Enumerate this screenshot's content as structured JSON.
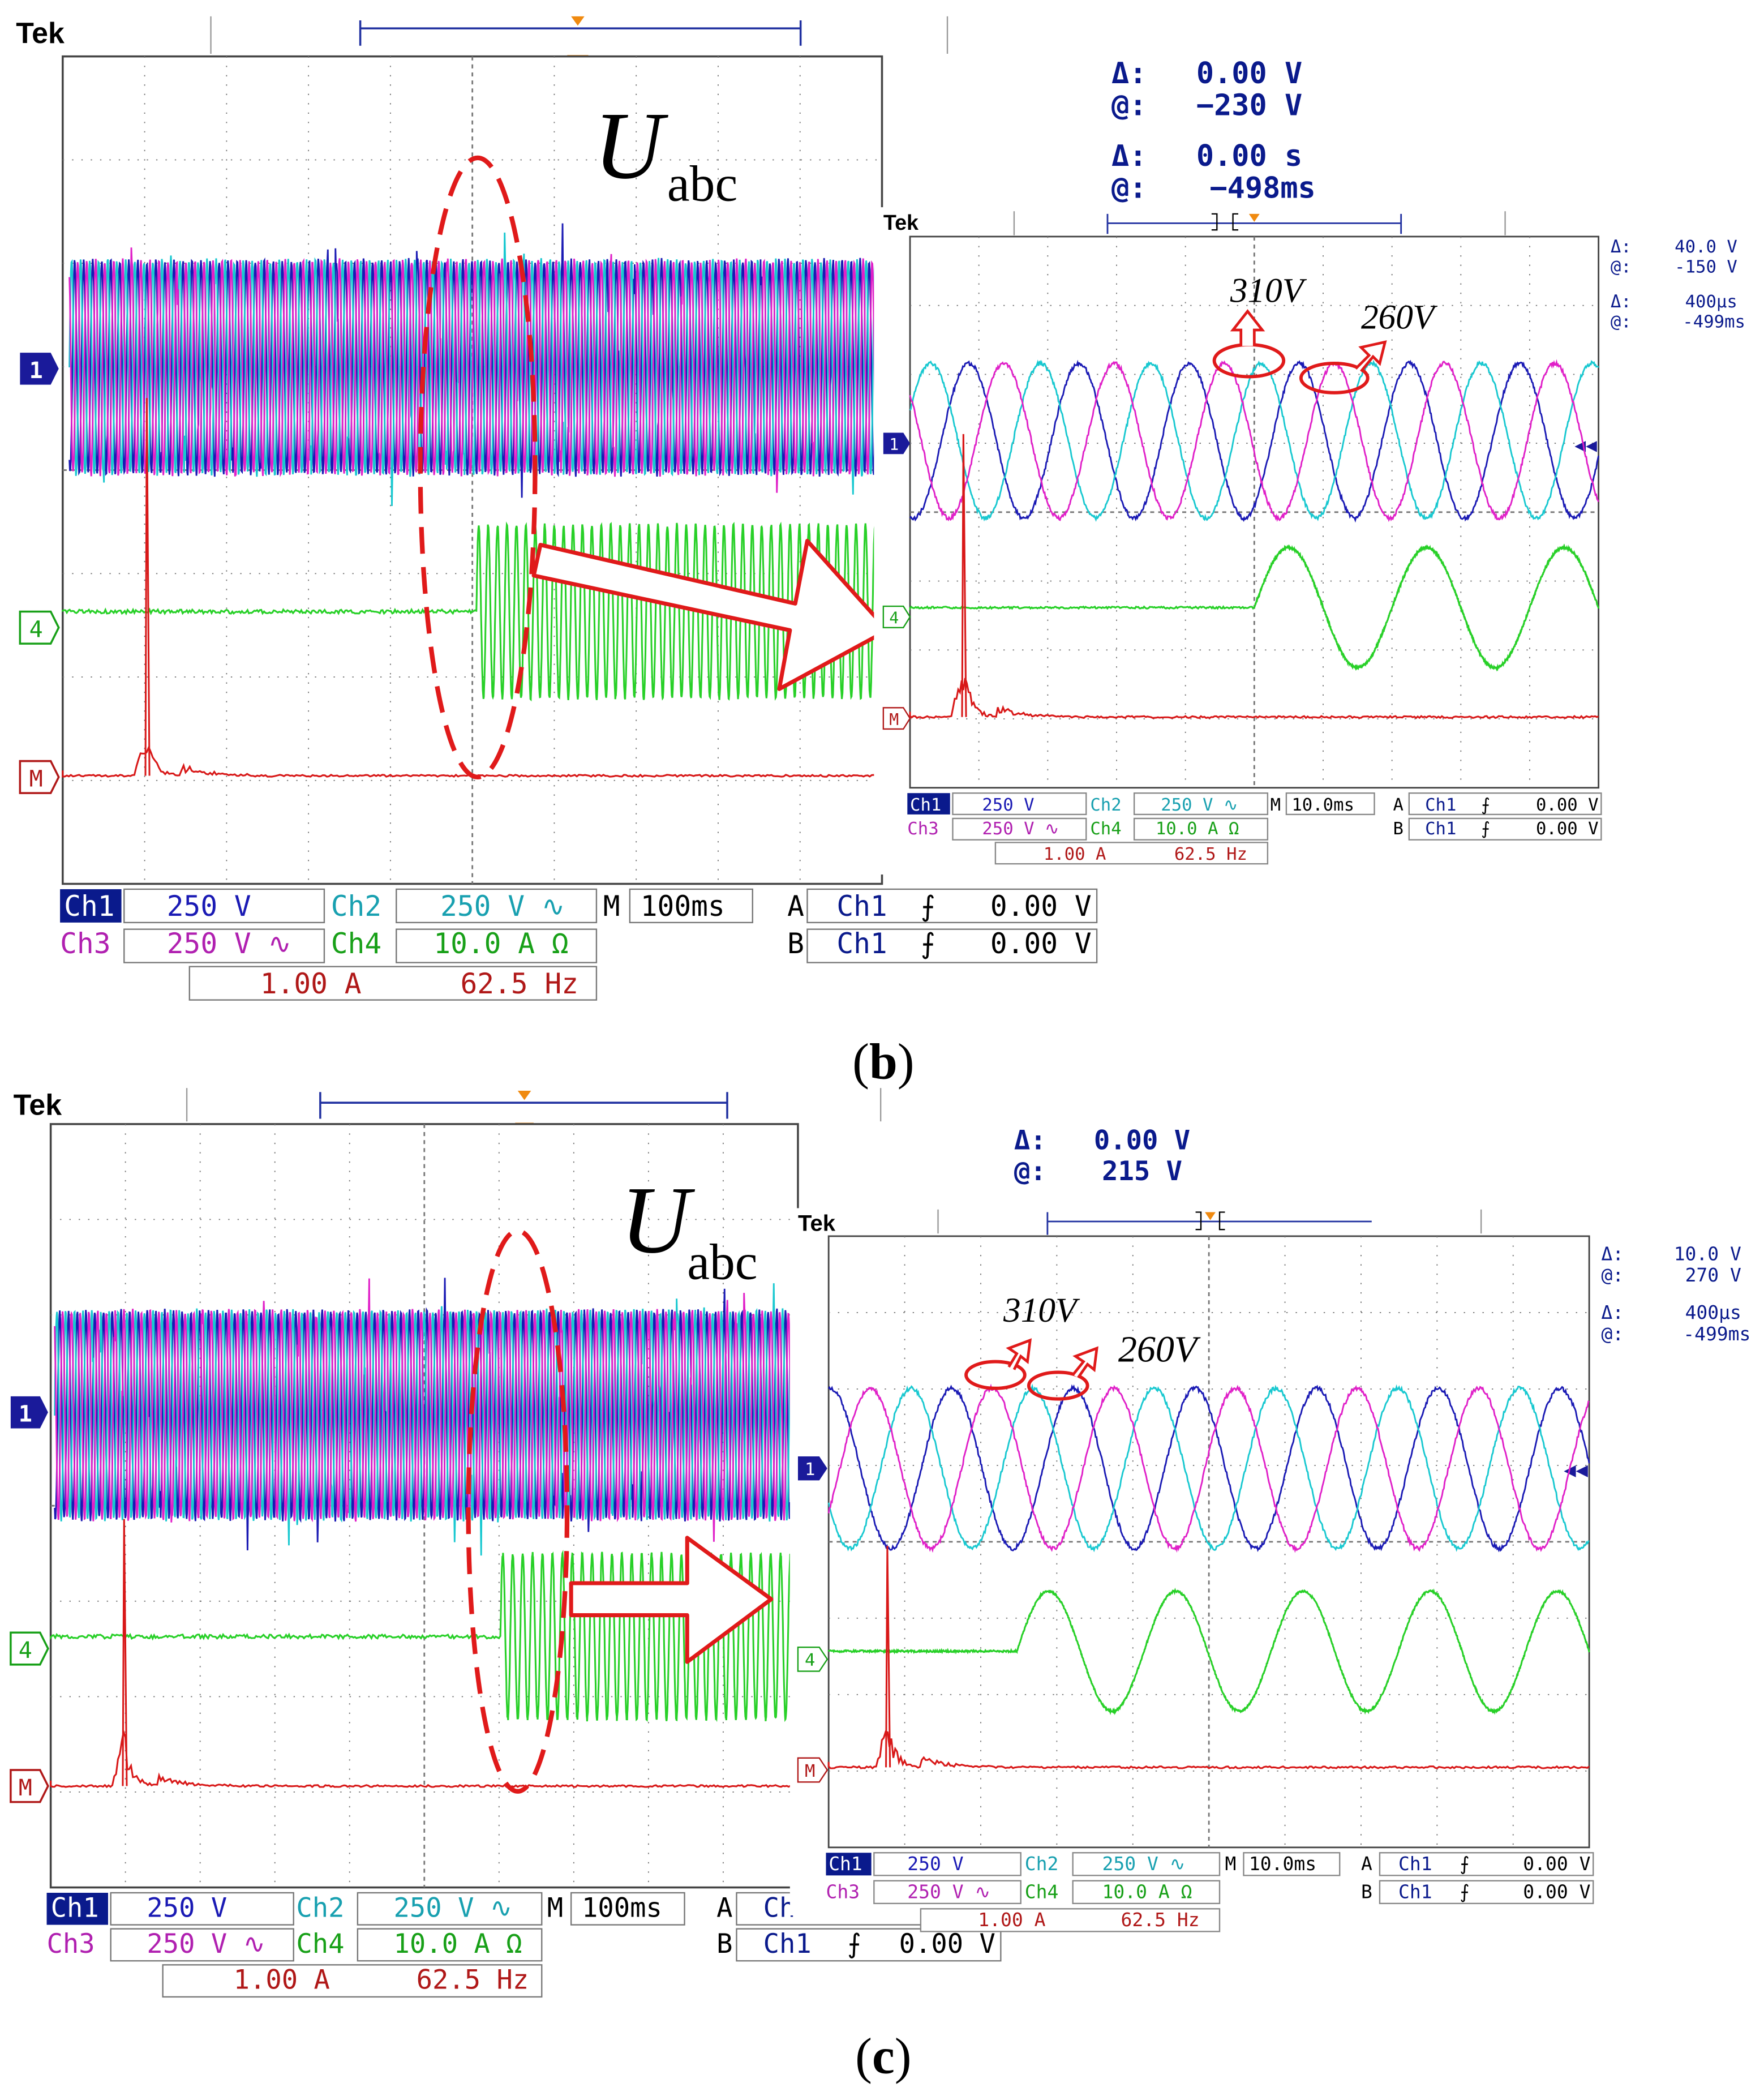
{
  "colors": {
    "ch1": "#1a1ab4",
    "ch2": "#18c8d0",
    "ch3": "#e020c8",
    "ch4": "#28d028",
    "math": "#d81818",
    "annotation": "#e01a1a",
    "readout": "#0a1a8c",
    "graticule": "#555555"
  },
  "icons": {
    "ellipse": "dashed-red-ellipse",
    "arrow": "big-red-outline-arrow",
    "markers": [
      "channel-1-marker",
      "channel-4-marker",
      "math-marker",
      "trigger-marker"
    ]
  },
  "panels": [
    {
      "caption": {
        "open": "(",
        "letter": "b",
        "close": ")"
      },
      "main": {
        "brand": "Tek",
        "title_main": "U",
        "title_sub": "abc",
        "cursor": {
          "dv_label": "Δ:",
          "dv": "0.00 V",
          "av_label": "@:",
          "av": "−230 V",
          "dt_label": "Δ:",
          "dt": "0.00 s",
          "at_label": "@:",
          "at": "−498ms"
        },
        "markers": {
          "ch1": "1",
          "ch4": "4",
          "math": "M"
        },
        "readout": {
          "ch1": "Ch1",
          "ch1_scale": "250 V",
          "ch2": "Ch2",
          "ch2_scale": "250 V ∿",
          "ch3": "Ch3",
          "ch3_scale": "250 V ∿",
          "ch4": "Ch4",
          "ch4_scale": "10.0 A Ω",
          "math_scale": "1.00 A",
          "math_freq": "62.5 Hz",
          "m_label": "M",
          "timebase": "100ms",
          "a_label": "A",
          "a_src": "Ch1",
          "a_slope": "⨍",
          "a_level": "0.00 V",
          "b_label": "B",
          "b_src": "Ch1",
          "b_slope": "⨍",
          "b_level": "0.00 V"
        }
      },
      "inset": {
        "brand": "Tek",
        "cursor": {
          "dv_label": "Δ:",
          "dv": "40.0 V",
          "av_label": "@:",
          "av": "-150 V",
          "dt_label": "Δ:",
          "dt": "400µs",
          "at_label": "@:",
          "at": "-499ms"
        },
        "ann1": "310V",
        "ann2": "260V",
        "markers": {
          "ch1": "1",
          "ch4": "4",
          "math": "M"
        },
        "readout": {
          "ch1": "Ch1",
          "ch1_scale": "250 V",
          "ch2": "Ch2",
          "ch2_scale": "250 V ∿",
          "ch3": "Ch3",
          "ch3_scale": "250 V ∿",
          "ch4": "Ch4",
          "ch4_scale": "10.0 A Ω",
          "math_scale": "1.00 A",
          "math_freq": "62.5 Hz",
          "m_label": "M",
          "timebase": "10.0ms",
          "a_label": "A",
          "a_src": "Ch1",
          "a_slope": "⨍",
          "a_level": "0.00 V",
          "b_label": "B",
          "b_src": "Ch1",
          "b_slope": "⨍",
          "b_level": "0.00 V"
        }
      }
    },
    {
      "caption": {
        "open": "(",
        "letter": "c",
        "close": ")"
      },
      "main": {
        "brand": "Tek",
        "title_main": "U",
        "title_sub": "abc",
        "cursor": {
          "dv_label": "Δ:",
          "dv": "0.00 V",
          "av_label": "@:",
          "av": "215 V",
          "dt_label": "",
          "dt": "",
          "at_label": "",
          "at": ""
        },
        "markers": {
          "ch1": "1",
          "ch4": "4",
          "math": "M"
        },
        "readout": {
          "ch1": "Ch1",
          "ch1_scale": "250 V",
          "ch2": "Ch2",
          "ch2_scale": "250 V ∿",
          "ch3": "Ch3",
          "ch3_scale": "250 V ∿",
          "ch4": "Ch4",
          "ch4_scale": "10.0 A Ω",
          "math_scale": "1.00 A",
          "math_freq": "62.5 Hz",
          "m_label": "M",
          "timebase": "100ms",
          "a_label": "A",
          "a_src": "Ch",
          "a_slope": "",
          "a_level": "",
          "b_label": "B",
          "b_src": "Ch1",
          "b_slope": "⨍",
          "b_level": "0.00 V"
        }
      },
      "inset": {
        "brand": "Tek",
        "cursor": {
          "dv_label": "Δ:",
          "dv": "10.0 V",
          "av_label": "@:",
          "av": "270 V",
          "dt_label": "Δ:",
          "dt": "400µs",
          "at_label": "@:",
          "at": "-499ms"
        },
        "ann1": "310V",
        "ann2": "260V",
        "markers": {
          "ch1": "1",
          "ch4": "4",
          "math": "M"
        },
        "readout": {
          "ch1": "Ch1",
          "ch1_scale": "250 V",
          "ch2": "Ch2",
          "ch2_scale": "250 V ∿",
          "ch3": "Ch3",
          "ch3_scale": "250 V ∿",
          "ch4": "Ch4",
          "ch4_scale": "10.0 A Ω",
          "math_scale": "1.00 A",
          "math_freq": "62.5 Hz",
          "m_label": "M",
          "timebase": "10.0ms",
          "a_label": "A",
          "a_src": "Ch1",
          "a_slope": "⨍",
          "a_level": "0.00 V",
          "b_label": "B",
          "b_src": "Ch1",
          "b_slope": "⨍",
          "b_level": "0.00 V"
        }
      }
    }
  ],
  "chart_data": [
    {
      "type": "line",
      "panel": "b-main",
      "timebase": "100ms/div",
      "x_divisions": 10,
      "y_divisions": 8,
      "series": [
        {
          "name": "Ch1",
          "kind": "three-phase voltage (dense)",
          "vertical_span_divisions": 2.2
        },
        {
          "name": "Ch2",
          "kind": "three-phase voltage (dense)",
          "vertical_span_divisions": 2.2
        },
        {
          "name": "Ch3",
          "kind": "three-phase voltage (dense)",
          "vertical_span_divisions": 2.2
        },
        {
          "name": "Ch4",
          "kind": "current",
          "step_at_division": 4.7,
          "before": "flat",
          "after_amplitude_divisions": 0.8
        },
        {
          "name": "M",
          "kind": "FFT spectrum",
          "peak_at_division": 0.8
        }
      ]
    },
    {
      "type": "line",
      "panel": "b-inset",
      "timebase": "10.0ms/div",
      "x_divisions": 10,
      "y_divisions": 8,
      "annotations": [
        "310V",
        "260V"
      ],
      "series": [
        {
          "name": "Ch1",
          "kind": "sine",
          "cycles_on_screen": 6.25,
          "amplitude_divisions": 1.1
        },
        {
          "name": "Ch2",
          "kind": "sine",
          "cycles_on_screen": 6.25,
          "amplitude_divisions": 1.1
        },
        {
          "name": "Ch3",
          "kind": "sine",
          "cycles_on_screen": 6.25,
          "amplitude_divisions": 1.1
        },
        {
          "name": "Ch4",
          "kind": "current",
          "step_at_division": 5.0,
          "cycles_after": 2.5,
          "amplitude_divisions": 0.9
        },
        {
          "name": "M",
          "kind": "FFT spectrum",
          "peak_at_division": 0.8
        }
      ]
    },
    {
      "type": "line",
      "panel": "c-main",
      "timebase": "100ms/div",
      "x_divisions": 10,
      "y_divisions": 8,
      "series": [
        {
          "name": "Ch1",
          "kind": "three-phase voltage (dense)",
          "vertical_span_divisions": 2.2
        },
        {
          "name": "Ch2",
          "kind": "three-phase voltage (dense)",
          "vertical_span_divisions": 2.2
        },
        {
          "name": "Ch3",
          "kind": "three-phase voltage (dense)",
          "vertical_span_divisions": 2.2
        },
        {
          "name": "Ch4",
          "kind": "current",
          "step_at_division": 5.8,
          "before": "flat",
          "after_amplitude_divisions": 0.8
        },
        {
          "name": "M",
          "kind": "FFT spectrum",
          "peak_at_division": 0.9
        }
      ]
    },
    {
      "type": "line",
      "panel": "c-inset",
      "timebase": "10.0ms/div",
      "x_divisions": 10,
      "y_divisions": 8,
      "annotations": [
        "310V",
        "260V"
      ],
      "series": [
        {
          "name": "Ch1",
          "kind": "sine",
          "cycles_on_screen": 6.25,
          "amplitude_divisions": 1.1
        },
        {
          "name": "Ch2",
          "kind": "sine",
          "cycles_on_screen": 6.25,
          "amplitude_divisions": 1.1
        },
        {
          "name": "Ch3",
          "kind": "sine",
          "cycles_on_screen": 6.25,
          "amplitude_divisions": 1.1
        },
        {
          "name": "Ch4",
          "kind": "current",
          "step_at_division": 2.6,
          "cycles_after": 4.5,
          "amplitude_divisions": 0.9
        },
        {
          "name": "M",
          "kind": "FFT spectrum",
          "peak_at_division": 0.8
        }
      ]
    }
  ]
}
